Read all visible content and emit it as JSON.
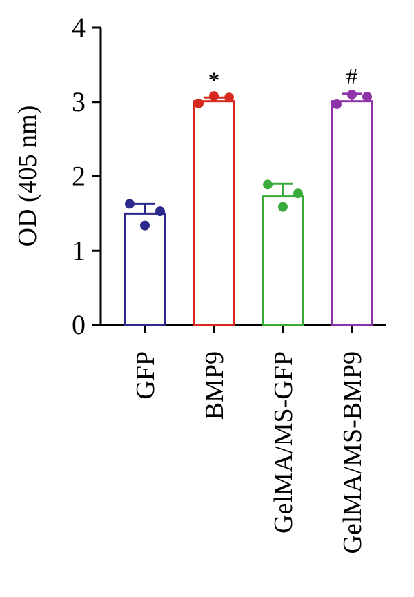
{
  "chart_data": {
    "type": "bar",
    "title": "",
    "xlabel": "",
    "ylabel": "OD (405 nm)",
    "ylim": [
      0,
      4
    ],
    "yticks": [
      0,
      1,
      2,
      3,
      4
    ],
    "grid": false,
    "categories": [
      "GFP",
      "BMP9",
      "GelMA/MS-GFP",
      "GelMA/MS-BMP9"
    ],
    "values": [
      1.5,
      3.01,
      1.73,
      3.01
    ],
    "errors": [
      0.13,
      0.05,
      0.17,
      0.1
    ],
    "points": [
      [
        1.63,
        1.34,
        1.53
      ],
      [
        2.98,
        3.08,
        3.06
      ],
      [
        1.89,
        1.59,
        1.77
      ],
      [
        2.97,
        3.1,
        3.07
      ]
    ],
    "annotations": [
      "",
      "*",
      "",
      "#"
    ],
    "colors": [
      "#2b2a8c",
      "#d62a1e",
      "#3aaa3a",
      "#8c34a8"
    ]
  }
}
